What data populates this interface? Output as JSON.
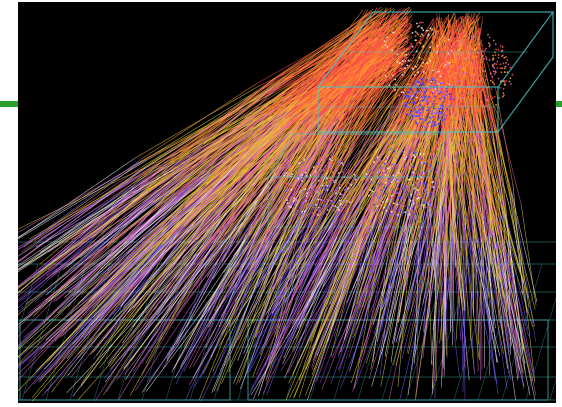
{
  "scene": {
    "kind": "particle-track-event-display",
    "background": "#000000",
    "accent": "#2aa02a",
    "palette": {
      "red": "#ff4a4a",
      "orange": "#ff9a2e",
      "yellow": "#e8d23a",
      "pink": "#e064c8",
      "violet": "#7a5cff",
      "blue": "#3a3aff",
      "cyan": "#49c6c6",
      "white": "#f4f0ff"
    }
  }
}
